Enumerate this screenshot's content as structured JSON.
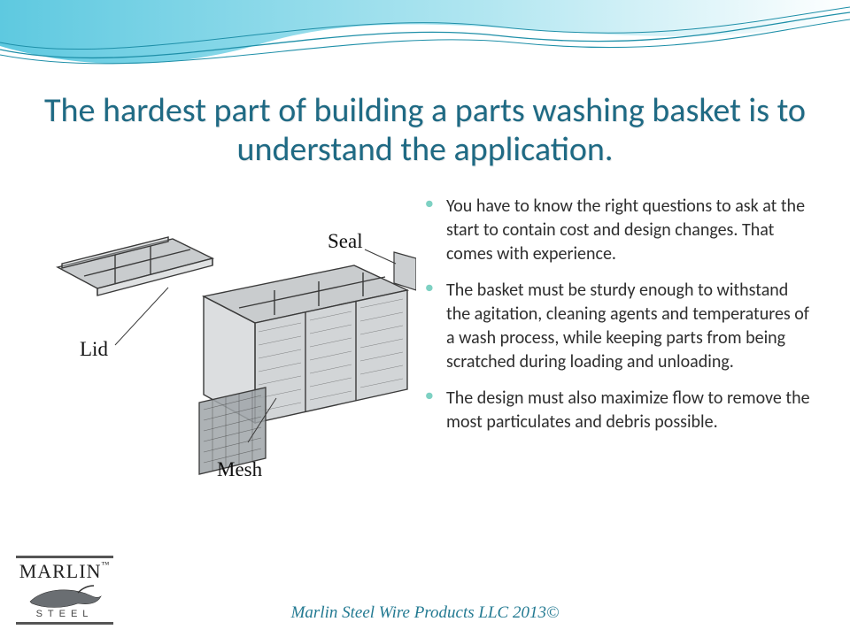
{
  "colors": {
    "wave_fill": "#5ec9e0",
    "wave_fill_light": "#aee5f0",
    "wave_line": "#1e8fa8",
    "title": "#1f6a84",
    "bullet": "#7ed1c3",
    "body_text": "#2e2e2e",
    "footer": "#237a92",
    "diagram_line": "#3a3a3a",
    "diagram_fill": "#bfc3c6",
    "diagram_fill_dark": "#8f9497",
    "mesh_fill": "#9fa4a8"
  },
  "title": "The hardest part of building a parts washing basket is to understand the application.",
  "bullets": [
    "You have to know the right questions to ask at the start to contain cost and design changes. That comes with experience.",
    "The basket must be sturdy enough to withstand the agitation, cleaning agents and temperatures of a wash process, while keeping parts from being scratched during loading and unloading.",
    "The design must also maximize flow to remove the most particulates and debris possible."
  ],
  "diagram": {
    "labels": {
      "lid": "Lid",
      "seal": "Seal",
      "mesh": "Mesh"
    }
  },
  "logo": {
    "top": "MARLIN",
    "tm": "™",
    "bottom": "STEEL"
  },
  "footer": "Marlin Steel Wire Products LLC 2013©"
}
